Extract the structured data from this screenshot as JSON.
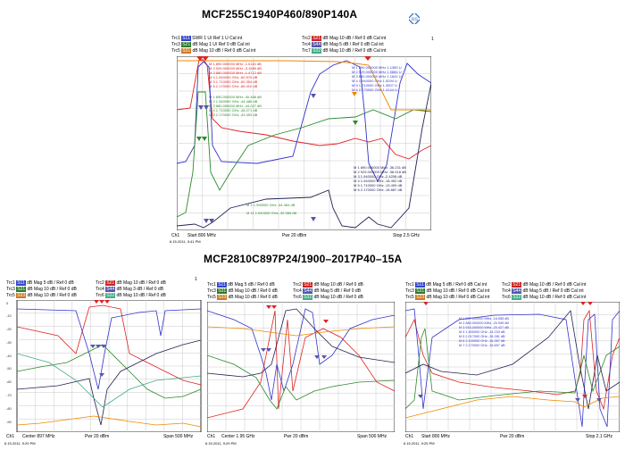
{
  "top_title": "MCF255C1940P460/890P140A",
  "bottom_title": "MCF2810C897P24/1900–2017P40–15A",
  "top_panel": {
    "traces": [
      {
        "id": "Trc1",
        "chip": "S11",
        "chip_color": "#3344cc",
        "params": "SWR  1 U/  Ref 1 U  Cal int"
      },
      {
        "id": "Trc3",
        "chip": "S21",
        "chip_color": "#2a7a2a",
        "params": "dB Mag  1 U/  Ref 0 dB  Cal int"
      },
      {
        "id": "Trc5",
        "chip": "S31",
        "chip_color": "#cc7a22",
        "params": "dB Mag 10 dB / Ref 0 dB  Cal int"
      },
      {
        "id": "Trc2",
        "chip": "S21",
        "chip_color": "#cc2222",
        "params": "dB Mag  10 dB / Ref 0 dB  Cal int"
      },
      {
        "id": "Trc4",
        "chip": "S44",
        "chip_color": "#5555aa",
        "params": "dB Mag  5 dB / Ref 0 dB  Cal int"
      },
      {
        "id": "Trc7",
        "chip": "S32",
        "chip_color": "#44aa88",
        "params": "dB Mag  10 dB / Ref 0 dB  Cal int"
      }
    ],
    "marker_red": [
      "M 1  890.000000 MHz  -1.0116 dB",
      "M 2  929.000000 MHz  -3.1589 dB",
      "M 3  880.000000 MHz  -1.4712 dB",
      "M 4  1.940000 GHz  -60.575 dB",
      "M 5  1.710000 GHz  -60.354 dB",
      "M 6  2.170000 GHz  -66.010 dB"
    ],
    "marker_blue": [
      "M 1  890.000000 MHz  1.1389 U",
      "M 2  929.000000 MHz  1.0884 U",
      "M 3  880.000000 MHz  1.1642 U",
      "M 4  1.940000 GHz  1.5294 U",
      "M 5  1.710000 GHz  1.3507 U",
      "M 6  2.170000 GHz  1.4144 U"
    ],
    "marker_green": [
      "M 1  890.000000 MHz  -40.488 dB",
      "M 2  1.940000 GHz  -44.488 dB",
      "M 3  880.000000 MHz  -44.027 dB",
      "M 4  1.710000 GHz  -48.271 dB",
      "M 5  2.170000 GHz  -43.493 dB"
    ],
    "marker_navy": [
      "M 1  890.000000 MHz  -36.231 dB",
      "M 2  929.000000 MHz  -36.018 dB",
      "M 3  1.940000 GHz  -2.4208 dB",
      "M 4  1.940000 GHz  -18.492 dB",
      "M 5  1.710000 GHz  -13.499 dB",
      "M 6  2.170000 GHz  -18.887 dB"
    ],
    "marker_bottom": [
      "M 1  1.990000 GHz  -44.484 dB",
      "M 11  1.940000 GHz  -32.985 dB"
    ],
    "footer": {
      "ch": "Ch1",
      "start": "Start  800 MHz",
      "pwr": "Pwr  20 dBm",
      "stop": "Stop  2.5 GHz",
      "date": "6.15.2011, 3:41 PM"
    }
  },
  "left_panel": {
    "traces": [
      {
        "id": "Trc1",
        "chip": "S11",
        "chip_color": "#3344cc",
        "params": "dB Mag  5 dB / Ref 0 dB"
      },
      {
        "id": "Trc3",
        "chip": "S31",
        "chip_color": "#2a7a2a",
        "params": "dB Mag  10 dB / Ref 0 dB"
      },
      {
        "id": "Trc5",
        "chip": "S33",
        "chip_color": "#cc7a22",
        "params": "dB Mag  10 dB / Ref 0 dB"
      },
      {
        "id": "Trc2",
        "chip": "S21",
        "chip_color": "#cc2222",
        "params": "dB Mag  10 dB / Ref 0 dB"
      },
      {
        "id": "Trc4",
        "chip": "S44",
        "chip_color": "#5555aa",
        "params": "dB Mag  3 dB / Ref 0 dB"
      },
      {
        "id": "Trc6",
        "chip": "S32",
        "chip_color": "#44aa88",
        "params": "dB Mag  10 dB / Ref 0 dB"
      }
    ],
    "yticks": [
      "0",
      "-10",
      "-20",
      "-30",
      "-40",
      "-50",
      "-60",
      "-70",
      "-80",
      "-90"
    ],
    "footer": {
      "ch": "Ch1",
      "center": "Center  897 MHz",
      "pwr": "Pwr  20 dBm",
      "span": "Span  500 MHz",
      "date": "6.15.2011, 9:29 PM"
    }
  },
  "mid_panel": {
    "traces": [
      {
        "id": "Trc1",
        "chip": "S11",
        "chip_color": "#3344cc",
        "params": "dB Mag  5 dB / Ref 0 dB"
      },
      {
        "id": "Trc3",
        "chip": "S31",
        "chip_color": "#2a7a2a",
        "params": "dB Mag  10 dB / Ref 0 dB"
      },
      {
        "id": "Trc5",
        "chip": "S33",
        "chip_color": "#cc7a22",
        "params": "dB Mag  10 dB / Ref 0 dB"
      },
      {
        "id": "Trc2",
        "chip": "S21",
        "chip_color": "#cc2222",
        "params": "dB Mag  10 dB / Ref 0 dB"
      },
      {
        "id": "Trc4",
        "chip": "S44",
        "chip_color": "#5555aa",
        "params": "dB Mag  5 dB / Ref 0 dB"
      },
      {
        "id": "Trc6",
        "chip": "S32",
        "chip_color": "#44aa88",
        "params": "dB Mag  10 dB / Ref 0 dB"
      }
    ],
    "footer": {
      "ch": "Ch1",
      "center": "Center  1.95 GHz",
      "pwr": "Pwr  20 dBm",
      "span": "Span  500 MHz",
      "date": "6.15.2011, 9:29 PM"
    }
  },
  "right_panel": {
    "traces": [
      {
        "id": "Trc1",
        "chip": "S11",
        "chip_color": "#3344cc",
        "params": "dB Mag  5 dB / Ref 0 dB  Cal int"
      },
      {
        "id": "Trc3",
        "chip": "S31",
        "chip_color": "#2a7a2a",
        "params": "dB Mag  10 dB / Ref 0 dB  Cal int"
      },
      {
        "id": "Trc5",
        "chip": "S33",
        "chip_color": "#cc7a22",
        "params": "dB Mag  10 dB / Ref 0 dB  Cal int"
      },
      {
        "id": "Trc2",
        "chip": "S21",
        "chip_color": "#cc2222",
        "params": "dB Mag  10 dB / Ref 0 dB  Cal int"
      },
      {
        "id": "Trc4",
        "chip": "S44",
        "chip_color": "#5555aa",
        "params": "dB Mag  5 dB / Ref 0 dB  Cal int"
      },
      {
        "id": "Trc6",
        "chip": "S32",
        "chip_color": "#44aa88",
        "params": "dB Mag  10 dB / Ref 0 dB  Cal int"
      }
    ],
    "marker_blue": [
      "M 1  897.000000 MHz  -16.555 dB",
      "M 2  880.000000 MHz  -20.945 dB",
      "M 3  915.000000 MHz  -20.427 dB",
      "M 4  1.900000 GHz  -14.233 dB",
      "M 5  2.017000 GHz  -15.281 dB",
      "M 6  2.100000 GHz  -15.287 dB",
      "M 7  2.170000 GHz  -15.697 dB"
    ],
    "footer": {
      "ch": "Ch1",
      "start": "Start  800 MHz",
      "pwr": "Pwr  20 dBm",
      "stop": "Stop  2.1 GHz",
      "date": "6.15.2011, 9:25 PM"
    }
  },
  "page_num": "1"
}
